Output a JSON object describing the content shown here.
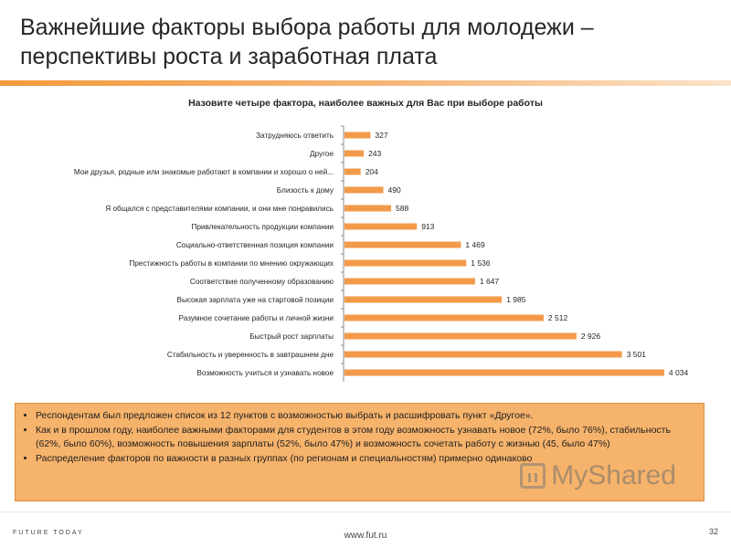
{
  "slide": {
    "title": "Важнейшие факторы выбора работы для молодежи – перспективы роста и заработная плата",
    "footer_url": "www.fut.ru",
    "page_number": "32",
    "logo_text": "FUTURE TODAY",
    "watermark": "MyShared"
  },
  "notes": [
    "Респондентам был предложен список из 12 пунктов с возможностью выбрать и расшифровать пункт «Другое».",
    "Как и в прошлом году, наиболее важными факторами  для студентов в этом году возможность узнавать новое (72%, было 76%), стабильность (62%, было 60%),  возможность повышения зарплаты (52%, было 47%) и возможность сочетать работу с жизнью (45, было 47%)",
    "Распределение факторов  по важности в разных группах (по регионам и специальностям) примерно одинаково"
  ],
  "chart_data": {
    "type": "bar",
    "orientation": "horizontal",
    "title": "Назовите четыре фактора, наиболее важных для Вас при выборе работы",
    "categories": [
      "Затрудняюсь ответить",
      "Другое",
      "Мои друзья, родные или знакомые работают в компании и хорошо о ней...",
      "Близость к дому",
      "Я общался с представителями компании, и они мне понравились",
      "Привлекательность продукции компании",
      "Социально-ответственная позиция компании",
      "Престижность работы в компании по мнению окружающих",
      "Соответствие полученному образованию",
      "Высокая зарплата уже на стартовой позиции",
      "Разумное сочетание работы и личной жизни",
      "Быстрый рост зарплаты",
      "Стабильность и уверенность в завтрашнем дне",
      "Возможность учиться и узнавать новое"
    ],
    "values": [
      327,
      243,
      204,
      490,
      588,
      913,
      1469,
      1536,
      1647,
      1985,
      2512,
      2926,
      3501,
      4034
    ],
    "value_labels": [
      "327",
      "243",
      "204",
      "490",
      "588",
      "913",
      "1 469",
      "1 536",
      "1 647",
      "1 985",
      "2 512",
      "2 926",
      "3 501",
      "4 034"
    ],
    "xlim": [
      0,
      4150
    ],
    "grid": false,
    "legend": "none",
    "bar_color": "#f39a4a"
  }
}
